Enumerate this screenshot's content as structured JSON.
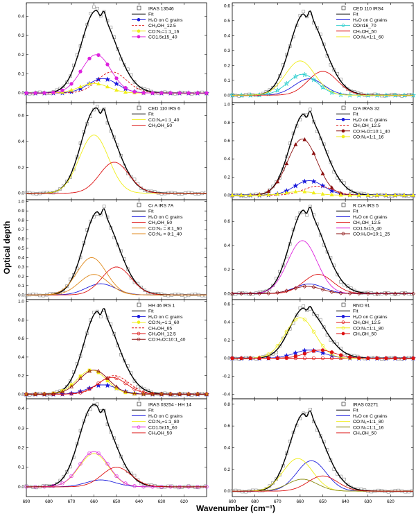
{
  "ylabel": "Optical depth",
  "xlabel": "Wavenumber (cm⁻¹)",
  "xticks": [
    690,
    680,
    670,
    660,
    650,
    640,
    630,
    620
  ],
  "colors": {
    "obs": "#888888",
    "fit": "#000000",
    "blue": "#1a1adc",
    "red": "#dd1111",
    "yellow": "#f0ee1a",
    "magenta": "#dd22dd",
    "cyan": "#22cccc",
    "orange": "#e08a1e",
    "darkred": "#8b1010",
    "olive": "#8b8b10"
  },
  "chart_data": [
    {
      "type": "line",
      "object": "IRAS 13546",
      "xlim": [
        690,
        610
      ],
      "ylim": [
        -0.05,
        0.47
      ],
      "yticks": [
        0.0,
        0.1,
        0.2,
        0.3,
        0.4
      ],
      "legend": [
        "IRAS 13546",
        "Fit",
        "H₂O on C grains",
        "CH₃OH_12.5",
        "CO:N₂=1:1_16",
        "CO1.5ε15_40"
      ],
      "series": [
        {
          "name": "IRAS 13546",
          "style": "obs",
          "color": "obs",
          "peak": 0.44,
          "x0": 659
        },
        {
          "name": "Fit",
          "style": "fit",
          "color": "fit",
          "peak": 0.43,
          "x0": 659
        },
        {
          "name": "H₂O on C grains",
          "style": "star",
          "color": "blue",
          "peak": 0.075,
          "x0": 656
        },
        {
          "name": "CH₃OH_12.5",
          "style": "dash",
          "color": "red",
          "peak": 0.11,
          "x0": 652
        },
        {
          "name": "CO:N₂=1:1_16",
          "style": "triangle",
          "color": "yellow",
          "peak": 0.05,
          "x0": 660
        },
        {
          "name": "CO1.5ε15_40",
          "style": "circle",
          "color": "magenta",
          "peak": 0.2,
          "x0": 659
        }
      ]
    },
    {
      "type": "line",
      "object": "CED 110 IRS4",
      "xlim": [
        690,
        610
      ],
      "ylim": [
        -0.05,
        0.62
      ],
      "yticks": [
        0.0,
        0.1,
        0.2,
        0.3,
        0.4,
        0.5,
        0.6
      ],
      "legend": [
        "CED 110 IRS4",
        "Fit",
        "H₂O on C grains",
        "COrr16_70",
        "CH₃OH_50",
        "CO:N₂=1:1_60"
      ],
      "series": [
        {
          "name": "CED 110 IRS4",
          "style": "obs",
          "color": "obs",
          "peak": 0.55,
          "x0": 658
        },
        {
          "name": "Fit",
          "style": "fit",
          "color": "fit",
          "peak": 0.55,
          "x0": 658
        },
        {
          "name": "H₂O on C grains",
          "style": "line",
          "color": "blue",
          "peak": 0.11,
          "x0": 656
        },
        {
          "name": "COrr16_70",
          "style": "star-open",
          "color": "cyan",
          "peak": 0.14,
          "x0": 659
        },
        {
          "name": "CH₃OH_50",
          "style": "line",
          "color": "red",
          "peak": 0.16,
          "x0": 650
        },
        {
          "name": "CO:N₂=1:1_60",
          "style": "line",
          "color": "yellow",
          "peak": 0.23,
          "x0": 660
        }
      ]
    },
    {
      "type": "line",
      "object": "CED 110 IRS 6",
      "xlim": [
        690,
        610
      ],
      "ylim": [
        -0.05,
        0.7
      ],
      "yticks": [
        0.0,
        0.2,
        0.4,
        0.6
      ],
      "legend": [
        "CED 110 IRS 6",
        "Fit",
        "CO:N₂=1:1_40",
        "CH₃OH_50"
      ],
      "series": [
        {
          "name": "CED 110 IRS 6",
          "style": "obs",
          "color": "obs",
          "peak": 0.66,
          "x0": 659
        },
        {
          "name": "Fit",
          "style": "fit",
          "color": "fit",
          "peak": 0.66,
          "x0": 659
        },
        {
          "name": "CO:N₂=1:1_40",
          "style": "line",
          "color": "yellow",
          "peak": 0.45,
          "x0": 660
        },
        {
          "name": "CH₃OH_50",
          "style": "line",
          "color": "red",
          "peak": 0.24,
          "x0": 651
        }
      ]
    },
    {
      "type": "line",
      "object": "CrA IRAS 32",
      "xlim": [
        690,
        610
      ],
      "ylim": [
        -0.05,
        1.02
      ],
      "yticks": [
        0.0,
        0.2,
        0.4,
        0.6,
        0.8,
        1.0
      ],
      "legend": [
        "CrA IRAS 32",
        "Fit",
        "H₂O on C grains",
        "CH₃OH_12.5",
        "CO:H₂O=10:1_40",
        "CO:N₂=1:1_16"
      ],
      "series": [
        {
          "name": "CrA IRAS 32",
          "style": "obs",
          "color": "obs",
          "peak": 0.9,
          "x0": 658
        },
        {
          "name": "Fit",
          "style": "fit",
          "color": "fit",
          "peak": 0.9,
          "x0": 658
        },
        {
          "name": "H₂O on C grains",
          "style": "star",
          "color": "blue",
          "peak": 0.16,
          "x0": 656
        },
        {
          "name": "CH₃OH_12.5",
          "style": "dash",
          "color": "red",
          "peak": 0.1,
          "x0": 652
        },
        {
          "name": "CO:H₂O=10:1_40",
          "style": "trifill",
          "color": "darkred",
          "peak": 0.62,
          "x0": 659
        },
        {
          "name": "CO:N₂=1:1_16",
          "style": "triangle",
          "color": "yellow",
          "peak": 0.04,
          "x0": 660
        }
      ]
    },
    {
      "type": "line",
      "object": "Cr A IRS 7A",
      "xlim": [
        690,
        610
      ],
      "ylim": [
        -0.05,
        1.02
      ],
      "yticks": [
        0.0,
        0.1,
        0.2,
        0.3,
        0.4,
        0.5,
        0.6,
        0.7,
        0.8,
        0.9,
        1.0
      ],
      "legend": [
        "Cr A IRS 7A",
        "Fit",
        "H₂O on C grains",
        "CH₃OH_50",
        "CO:N₂ = 8:1_60",
        "CO:N₂ = 8:1_40"
      ],
      "series": [
        {
          "name": "Cr A IRS 7A",
          "style": "obs",
          "color": "obs",
          "peak": 0.9,
          "x0": 658
        },
        {
          "name": "Fit",
          "style": "fit",
          "color": "fit",
          "peak": 0.9,
          "x0": 658
        },
        {
          "name": "H₂O on C grains",
          "style": "line",
          "color": "blue",
          "peak": 0.12,
          "x0": 657
        },
        {
          "name": "CH₃OH_50",
          "style": "line",
          "color": "red",
          "peak": 0.3,
          "x0": 650
        },
        {
          "name": "CO:N₂ = 8:1_60",
          "style": "line",
          "color": "orange",
          "peak": 0.4,
          "x0": 661
        },
        {
          "name": "CO:N₂ = 8:1_40",
          "style": "line",
          "color": "orange",
          "peak": 0.22,
          "x0": 660
        }
      ]
    },
    {
      "type": "line",
      "object": "R CrA IRS 5",
      "xlim": [
        690,
        610
      ],
      "ylim": [
        -0.05,
        0.78
      ],
      "yticks": [
        0.0,
        0.2,
        0.4,
        0.6
      ],
      "legend": [
        "R CrA IRS 5",
        "Fit",
        "H₂O on C grains",
        "CH₃OH_12.5",
        "CO1.5ε15_40",
        "CO:H₂O=10:1_25"
      ],
      "series": [
        {
          "name": "R CrA IRS 5",
          "style": "obs",
          "color": "obs",
          "peak": 0.7,
          "x0": 658
        },
        {
          "name": "Fit",
          "style": "fit",
          "color": "fit",
          "peak": 0.7,
          "x0": 658
        },
        {
          "name": "H₂O on C grains",
          "style": "line",
          "color": "blue",
          "peak": 0.08,
          "x0": 656
        },
        {
          "name": "CH₃OH_12.5",
          "style": "line",
          "color": "red",
          "peak": 0.16,
          "x0": 652
        },
        {
          "name": "CO1.5ε15_40",
          "style": "line",
          "color": "magenta",
          "peak": 0.44,
          "x0": 659
        },
        {
          "name": "CO:H₂O=10:1_25",
          "style": "diamond",
          "color": "darkred",
          "peak": 0.06,
          "x0": 657
        }
      ]
    },
    {
      "type": "line",
      "object": "HH 46 IRS 1",
      "xlim": [
        690,
        610
      ],
      "ylim": [
        -0.05,
        1.02
      ],
      "yticks": [
        0.0,
        0.2,
        0.4,
        0.6,
        0.8,
        1.0
      ],
      "legend": [
        "HH 46 IRS 1",
        "Fit",
        "H₂O on C grains",
        "CO:N₂=1:1_60",
        "CH₃OH_65",
        "CH₃OH_12.5",
        "CO:H₂O=10:1_40"
      ],
      "series": [
        {
          "name": "HH 46 IRS 1",
          "style": "obs",
          "color": "obs",
          "peak": 0.9,
          "x0": 658
        },
        {
          "name": "Fit",
          "style": "fit",
          "color": "fit",
          "peak": 0.9,
          "x0": 658
        },
        {
          "name": "H₂O on C grains",
          "style": "star",
          "color": "blue",
          "peak": 0.1,
          "x0": 656
        },
        {
          "name": "CO:N₂=1:1_60",
          "style": "square",
          "color": "yellow",
          "peak": 0.26,
          "x0": 661
        },
        {
          "name": "CH₃OH_65",
          "style": "dash",
          "color": "red",
          "peak": 0.2,
          "x0": 651
        },
        {
          "name": "CH₃OH_12.5",
          "style": "circle-open",
          "color": "red",
          "peak": 0.18,
          "x0": 652
        },
        {
          "name": "CO:H₂O=10:1_40",
          "style": "tri-open",
          "color": "darkred",
          "peak": 0.26,
          "x0": 660
        }
      ]
    },
    {
      "type": "line",
      "object": "RNO 91",
      "xlim": [
        690,
        610
      ],
      "ylim": [
        -0.45,
        0.65
      ],
      "yticks": [
        -0.4,
        -0.2,
        0.0,
        0.2,
        0.4,
        0.6
      ],
      "legend": [
        "RNO 91",
        "Fit",
        "H₂O on C grains",
        "CH₃OH_12.5",
        "CO:N₂=1:1_80",
        "CH₃OH_50"
      ],
      "series": [
        {
          "name": "RNO 91",
          "style": "obs",
          "color": "obs",
          "peak": 0.56,
          "x0": 658
        },
        {
          "name": "Fit",
          "style": "fit",
          "color": "fit",
          "peak": 0.56,
          "x0": 658
        },
        {
          "name": "H₂O on C grains",
          "style": "star",
          "color": "blue",
          "peak": 0.09,
          "x0": 656
        },
        {
          "name": "CH₃OH_12.5",
          "style": "circle-open",
          "color": "red",
          "peak": 0.0,
          "x0": 652
        },
        {
          "name": "CO:N₂=1:1_80",
          "style": "circle-open",
          "color": "yellow",
          "peak": 0.45,
          "x0": 660
        },
        {
          "name": "CH₃OH_50",
          "style": "circle",
          "color": "red",
          "peak": 0.09,
          "x0": 651
        }
      ]
    },
    {
      "type": "line",
      "object": "IRAS 03254 - HH 14",
      "xlim": [
        690,
        610
      ],
      "ylim": [
        -0.05,
        0.45
      ],
      "yticks": [
        0.0,
        0.1,
        0.2,
        0.3,
        0.4
      ],
      "legend": [
        "IRAS 03254 - HH 14",
        "Fit",
        "H₂O on C grains",
        "CO:N₂=1:1_80",
        "CO1.5ε15_60",
        "CH₃OH_50"
      ],
      "series": [
        {
          "name": "IRAS 03254 - HH 14",
          "style": "obs",
          "color": "obs",
          "peak": 0.42,
          "x0": 660
        },
        {
          "name": "Fit",
          "style": "fit",
          "color": "fit",
          "peak": 0.42,
          "x0": 660
        },
        {
          "name": "H₂O on C grains",
          "style": "line",
          "color": "blue",
          "peak": 0.035,
          "x0": 657
        },
        {
          "name": "CO:N₂=1:1_80",
          "style": "line",
          "color": "yellow",
          "peak": 0.17,
          "x0": 660
        },
        {
          "name": "CO1.5ε15_60",
          "style": "circle-open",
          "color": "magenta",
          "peak": 0.18,
          "x0": 660
        },
        {
          "name": "CH₃OH_50",
          "style": "line",
          "color": "red",
          "peak": 0.1,
          "x0": 650
        }
      ]
    },
    {
      "type": "line",
      "object": "IRAS 03271",
      "xlim": [
        690,
        610
      ],
      "ylim": [
        -0.05,
        0.85
      ],
      "yticks": [
        0.0,
        0.2,
        0.4,
        0.6,
        0.8
      ],
      "legend": [
        "IRAS 03271",
        "Fit",
        "H₂O on C grains",
        "CO:N₂=1:1_80",
        "CO:N₂=1:1_16",
        "CH₃OH_50"
      ],
      "series": [
        {
          "name": "IRAS 03271",
          "style": "obs",
          "color": "obs",
          "peak": 0.72,
          "x0": 658
        },
        {
          "name": "Fit",
          "style": "fit",
          "color": "fit",
          "peak": 0.72,
          "x0": 658
        },
        {
          "name": "H₂O on C grains",
          "style": "line",
          "color": "blue",
          "peak": 0.28,
          "x0": 655
        },
        {
          "name": "CO:N₂=1:1_80",
          "style": "line",
          "color": "yellow",
          "peak": 0.3,
          "x0": 661
        },
        {
          "name": "CO:N₂=1:1_16",
          "style": "line",
          "color": "olive",
          "peak": 0.11,
          "x0": 659
        },
        {
          "name": "CH₃OH_50",
          "style": "line",
          "color": "red",
          "peak": 0.14,
          "x0": 650
        }
      ]
    }
  ]
}
